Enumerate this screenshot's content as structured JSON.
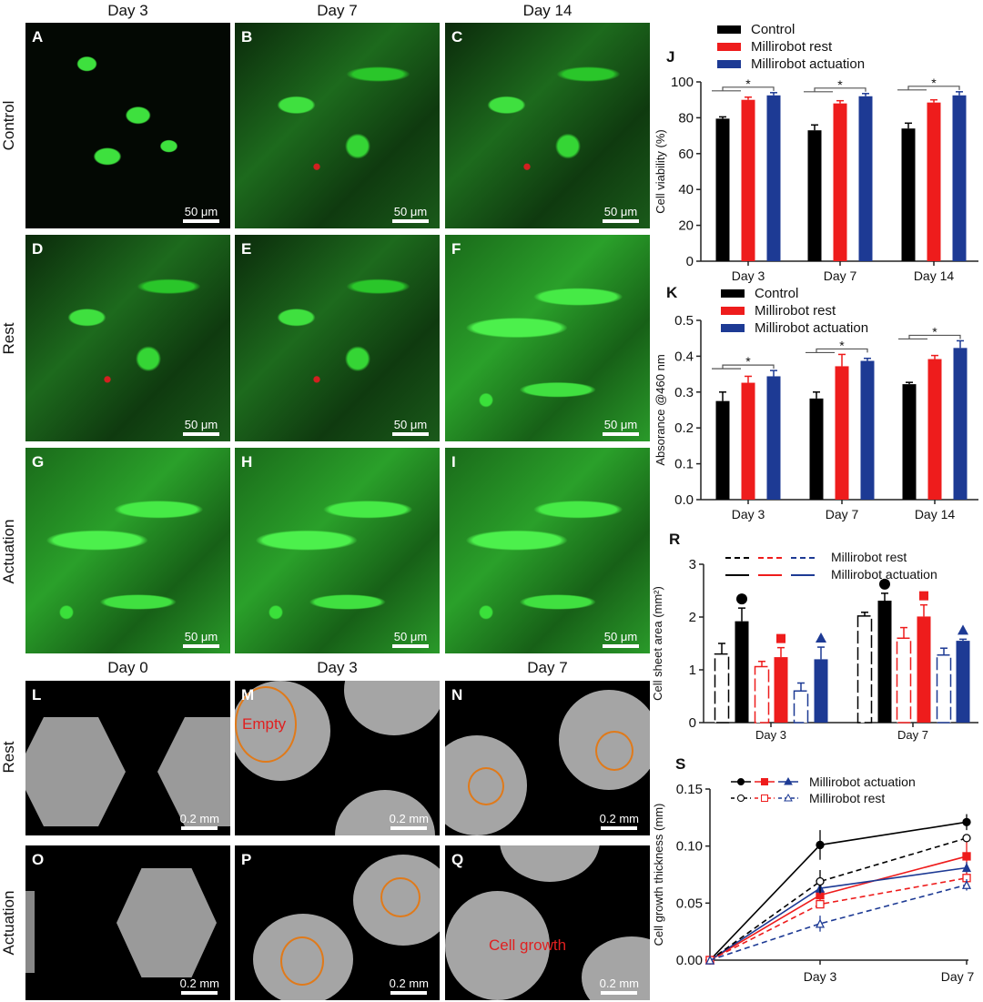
{
  "images": {
    "col_headers_top": [
      "Day 3",
      "Day 7",
      "Day 14"
    ],
    "row_headers_top": [
      "Control",
      "Rest",
      "Actuation"
    ],
    "col_headers_bottom": [
      "Day 0",
      "Day 3",
      "Day 7"
    ],
    "row_headers_bottom": [
      "Rest",
      "Actuation"
    ],
    "fluorescence_panels": [
      {
        "letter": "A",
        "scale": "50 μm"
      },
      {
        "letter": "B",
        "scale": "50 μm"
      },
      {
        "letter": "C",
        "scale": "50 μm"
      },
      {
        "letter": "D",
        "scale": "50 μm"
      },
      {
        "letter": "E",
        "scale": "50 μm"
      },
      {
        "letter": "F",
        "scale": "50 μm"
      },
      {
        "letter": "G",
        "scale": "50 μm"
      },
      {
        "letter": "H",
        "scale": "50 μm"
      },
      {
        "letter": "I",
        "scale": "50 μm"
      }
    ],
    "scaffold_panels": [
      {
        "letter": "L",
        "scale": "0.2 mm"
      },
      {
        "letter": "M",
        "scale": "0.2 mm"
      },
      {
        "letter": "N",
        "scale": "0.2 mm"
      },
      {
        "letter": "O",
        "scale": "0.2 mm"
      },
      {
        "letter": "P",
        "scale": "0.2 mm"
      },
      {
        "letter": "Q",
        "scale": "0.2 mm"
      }
    ],
    "annotations": {
      "empty": "Empty",
      "cell_growth": "Cell growth"
    }
  },
  "colors": {
    "control": "#000000",
    "rest": "#ee1c1c",
    "actuation": "#1d3a94",
    "green": "#3ee03e"
  },
  "chart_data": [
    {
      "panel": "J",
      "type": "bar",
      "categories": [
        "Day 3",
        "Day 7",
        "Day 14"
      ],
      "ylabel": "Cell viability (%)",
      "ylim": [
        0,
        100
      ],
      "yticks": [
        0,
        20,
        40,
        60,
        80,
        100
      ],
      "legend": "top-left",
      "series": [
        {
          "name": "Control",
          "values": [
            79.5,
            73,
            74
          ],
          "errors": [
            1,
            3,
            3
          ]
        },
        {
          "name": "Millirobot rest",
          "values": [
            90,
            88,
            88.5
          ],
          "errors": [
            1.5,
            1.5,
            1.5
          ]
        },
        {
          "name": "Millirobot actuation",
          "values": [
            92.5,
            92,
            92.5
          ],
          "errors": [
            1.5,
            1.5,
            2
          ]
        }
      ],
      "significance": [
        "*",
        "*",
        "*"
      ]
    },
    {
      "panel": "K",
      "type": "bar",
      "categories": [
        "Day 3",
        "Day 7",
        "Day 14"
      ],
      "ylabel": "Absorance @460 nm",
      "ylim": [
        0,
        0.5
      ],
      "yticks": [
        "0.0",
        "0.1",
        "0.2",
        "0.3",
        "0.4",
        "0.5"
      ],
      "legend": "top-left",
      "series": [
        {
          "name": "Control",
          "values": [
            0.275,
            0.282,
            0.322
          ],
          "errors": [
            0.025,
            0.018,
            0.005
          ]
        },
        {
          "name": "Millirobot rest",
          "values": [
            0.326,
            0.372,
            0.392
          ],
          "errors": [
            0.018,
            0.033,
            0.01
          ]
        },
        {
          "name": "Millirobot actuation",
          "values": [
            0.344,
            0.387,
            0.423
          ],
          "errors": [
            0.016,
            0.007,
            0.02
          ]
        }
      ],
      "significance": [
        "*",
        "*",
        "*"
      ]
    },
    {
      "panel": "R",
      "type": "bar",
      "categories": [
        "Day 3",
        "Day 7"
      ],
      "ylabel": "Cell sheet area (mm²)",
      "ylim": [
        0,
        3
      ],
      "yticks": [
        0,
        1,
        2,
        3
      ],
      "legend": "top",
      "legend_labels": [
        "Millirobot rest",
        "Millirobot actuation"
      ],
      "bars": [
        {
          "color": "black",
          "style": "dashed-outline",
          "values": [
            1.3,
            2.02
          ],
          "errors": [
            0.2,
            0.07
          ]
        },
        {
          "color": "black",
          "style": "filled",
          "values": [
            1.92,
            2.31
          ],
          "errors": [
            0.25,
            0.14
          ],
          "marker": "circle"
        },
        {
          "color": "red",
          "style": "dashed-outline",
          "values": [
            1.06,
            1.6
          ],
          "errors": [
            0.1,
            0.2
          ]
        },
        {
          "color": "red",
          "style": "filled",
          "values": [
            1.24,
            2.01
          ],
          "errors": [
            0.18,
            0.22
          ],
          "marker": "square"
        },
        {
          "color": "blue",
          "style": "dashed-outline",
          "values": [
            0.6,
            1.28
          ],
          "errors": [
            0.15,
            0.13
          ]
        },
        {
          "color": "blue",
          "style": "filled",
          "values": [
            1.2,
            1.55
          ],
          "errors": [
            0.23,
            0.03
          ],
          "marker": "triangle"
        }
      ]
    },
    {
      "panel": "S",
      "type": "line",
      "x": [
        "0",
        "Day 3",
        "Day 7"
      ],
      "xticklabels": [
        "Day 3",
        "Day 7"
      ],
      "ylabel": "Cell growth thickness (mm)",
      "ylim": [
        0,
        0.15
      ],
      "yticks": [
        "0.00",
        "0.05",
        "0.10",
        "0.15"
      ],
      "legend": "top",
      "legend_labels": [
        "Millirobot actuation",
        "Millirobot rest"
      ],
      "series": [
        {
          "group": "actuation",
          "color": "black",
          "marker": "filled-circle",
          "values": [
            0,
            0.101,
            0.121
          ],
          "errors": [
            0,
            0.013,
            0.007
          ]
        },
        {
          "group": "actuation",
          "color": "red",
          "marker": "filled-square",
          "values": [
            0,
            0.057,
            0.091
          ],
          "errors": [
            0,
            0.005,
            0.013
          ]
        },
        {
          "group": "actuation",
          "color": "blue",
          "marker": "filled-triangle",
          "values": [
            0,
            0.063,
            0.081
          ],
          "errors": [
            0,
            0.005,
            0.005
          ]
        },
        {
          "group": "rest",
          "color": "black",
          "marker": "open-circle",
          "values": [
            0,
            0.069,
            0.107
          ],
          "errors": [
            0,
            0.01,
            0.003
          ]
        },
        {
          "group": "rest",
          "color": "red",
          "marker": "open-square",
          "values": [
            0,
            0.049,
            0.072
          ],
          "errors": [
            0,
            0.003,
            0.005
          ]
        },
        {
          "group": "rest",
          "color": "blue",
          "marker": "open-triangle",
          "values": [
            0,
            0.032,
            0.066
          ],
          "errors": [
            0,
            0.007,
            0.005
          ]
        }
      ]
    }
  ]
}
